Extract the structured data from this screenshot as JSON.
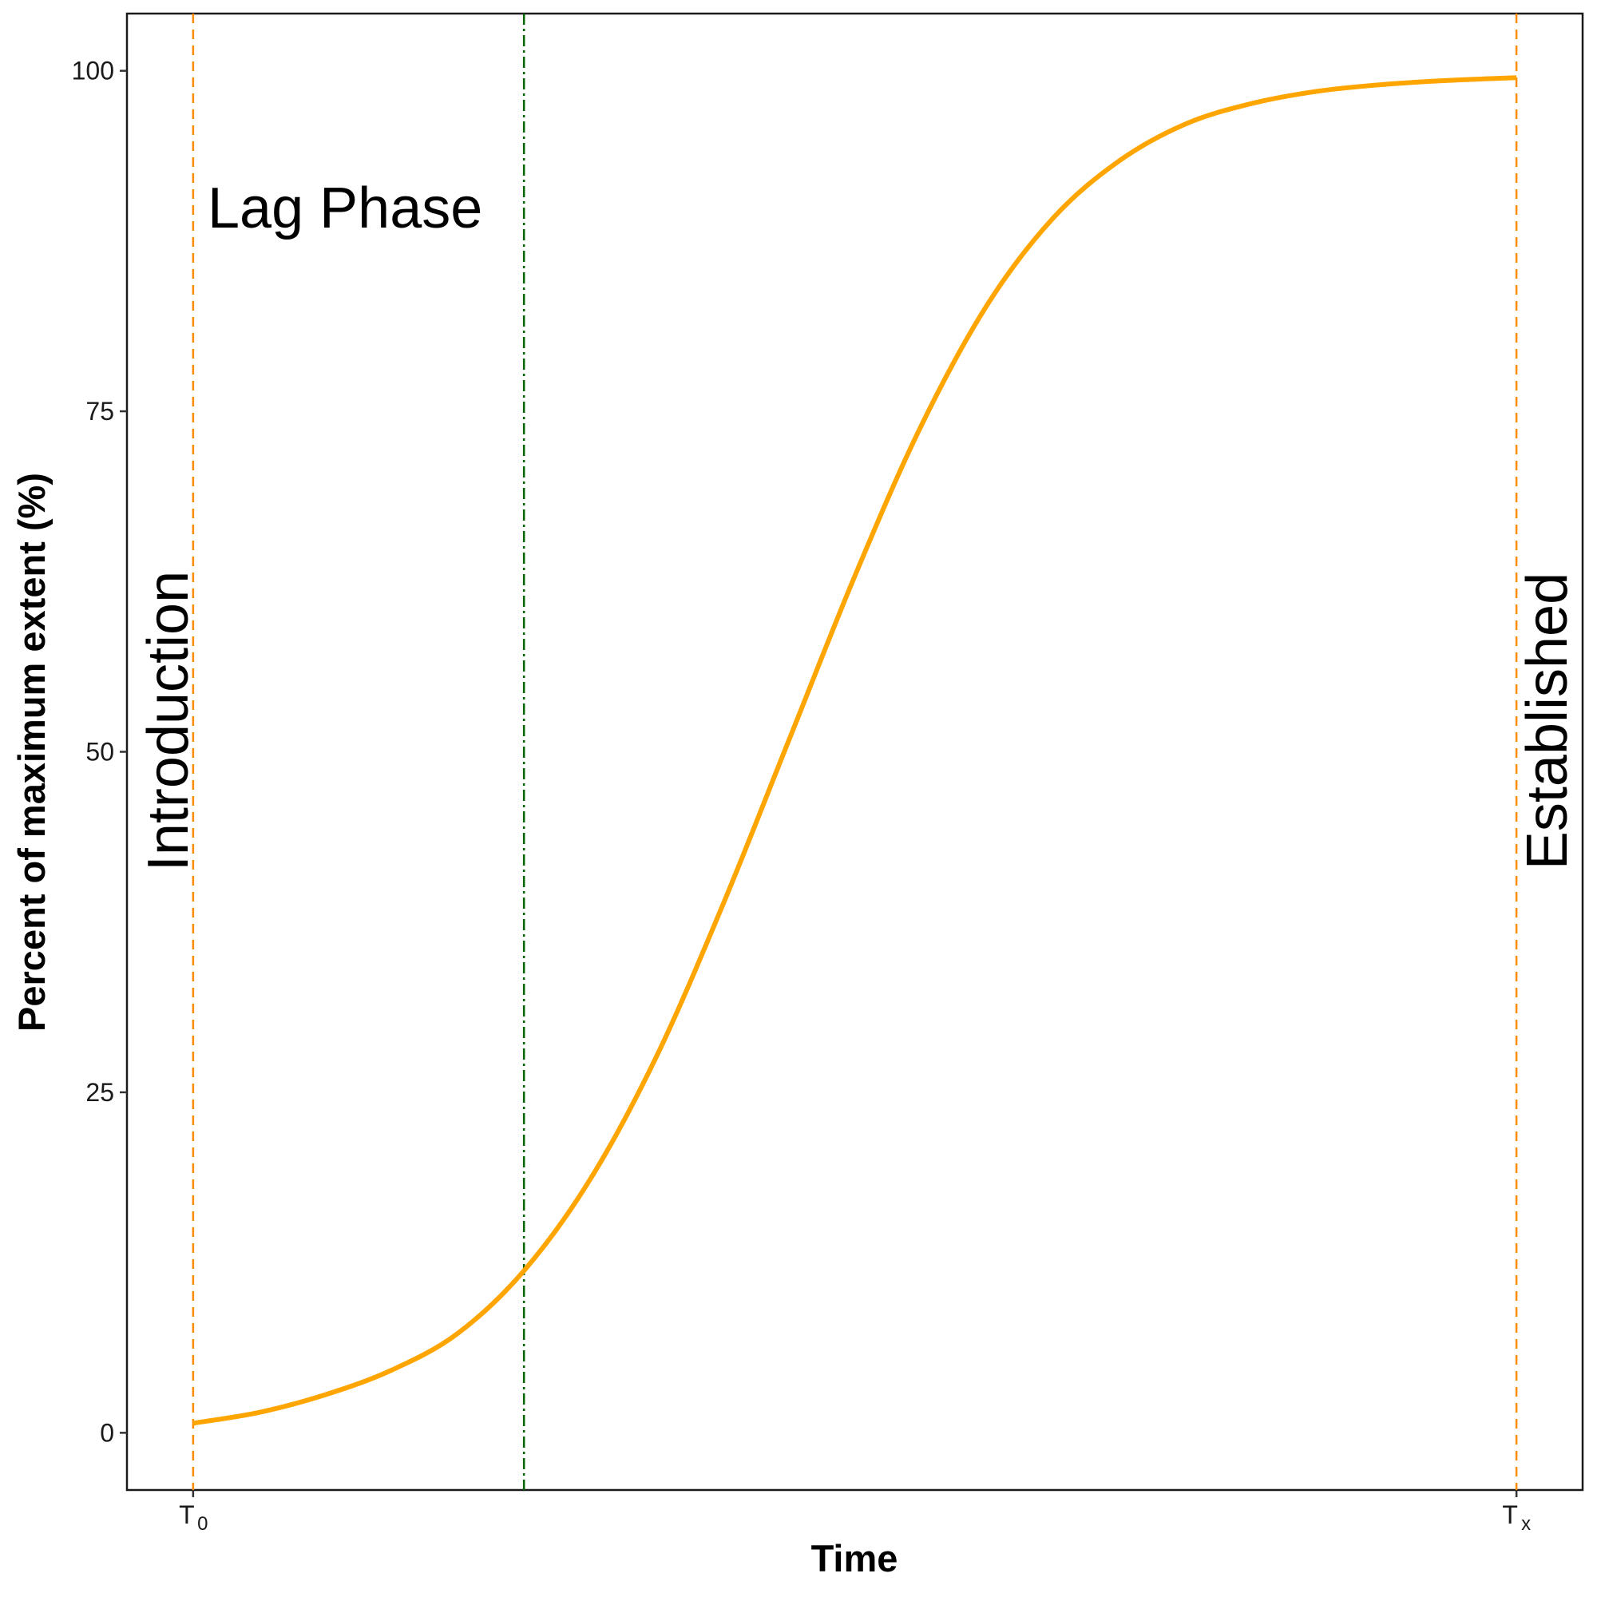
{
  "chart_data": {
    "type": "line",
    "title": "",
    "xlabel": "Time",
    "ylabel": "Percent of maximum extent (%)",
    "ylim": [
      -4.2,
      104.2
    ],
    "xlim": [
      -0.05,
      1.05
    ],
    "y_ticks": [
      0,
      25,
      50,
      75,
      100
    ],
    "x_ticks": [
      {
        "x": 0,
        "label": "T",
        "sub": "0"
      },
      {
        "x": 1,
        "label": "T",
        "sub": "x"
      }
    ],
    "grid": false,
    "series": [
      {
        "color": "#FFA500",
        "x": [
          0,
          0.05,
          0.1,
          0.15,
          0.2,
          0.25,
          0.3,
          0.35,
          0.4,
          0.45,
          0.5,
          0.55,
          0.6,
          0.65,
          0.7,
          0.75,
          0.8,
          0.85,
          0.9,
          0.95,
          1.0
        ],
        "y": [
          0.7,
          1.5,
          2.8,
          4.6,
          7.3,
          11.9,
          18.6,
          27.6,
          38.7,
          50.8,
          62.9,
          73.9,
          82.8,
          89.2,
          93.4,
          96.1,
          97.6,
          98.5,
          99.0,
          99.3,
          99.5
        ]
      }
    ],
    "vlines": [
      {
        "x": 0,
        "color": "#FF8C00",
        "style": "dashed"
      },
      {
        "x": 0.25,
        "color": "#006400",
        "style": "dotdash"
      },
      {
        "x": 1,
        "color": "#FF8C00",
        "style": "dashed"
      }
    ],
    "annotations": {
      "introduction": {
        "text": "Introduction",
        "color": "#000000"
      },
      "lag_phase": {
        "text": "Lag Phase",
        "color": "#006400"
      },
      "established": {
        "text": "Established",
        "color": "#000000"
      }
    }
  }
}
